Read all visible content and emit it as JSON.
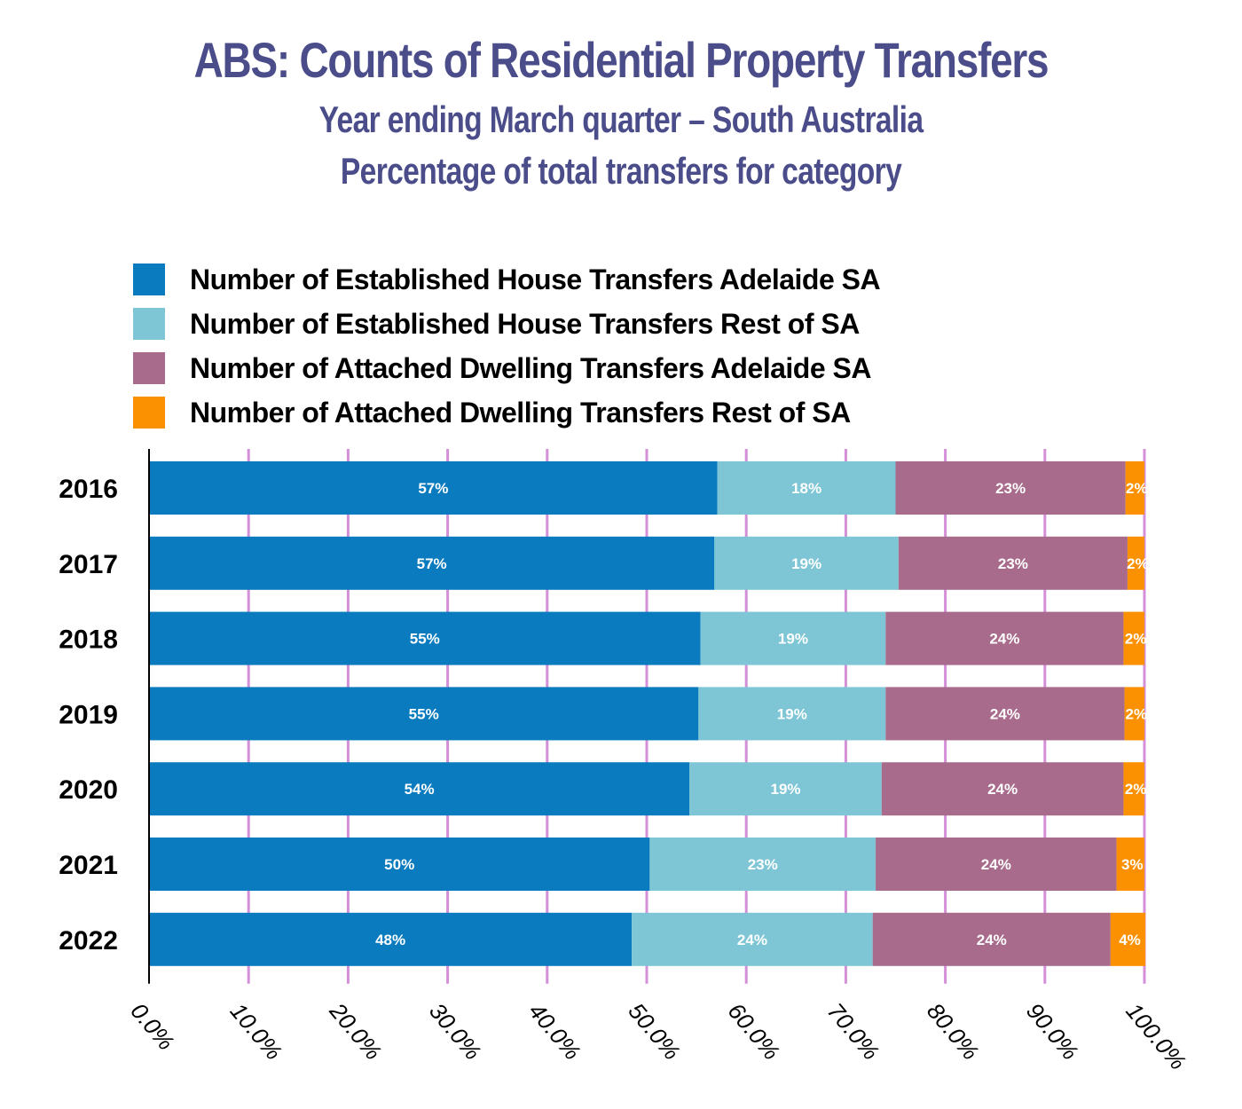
{
  "chart_data": {
    "type": "bar",
    "orientation": "horizontal",
    "stacked": "percent",
    "title": "ABS: Counts of Residential Property Transfers",
    "subtitle_lines": [
      "Year ending March quarter – South Australia",
      "Percentage of total transfers for category"
    ],
    "xlabel": "",
    "ylabel": "",
    "xlim": [
      0,
      100
    ],
    "x_ticks": [
      "0.0%",
      "10.0%",
      "20.0%",
      "30.0%",
      "40.0%",
      "50.0%",
      "60.0%",
      "70.0%",
      "80.0%",
      "90.0%",
      "100.0%"
    ],
    "grid": "vertical",
    "legend_position": "top",
    "categories": [
      "2016",
      "2017",
      "2018",
      "2019",
      "2020",
      "2021",
      "2022"
    ],
    "series": [
      {
        "name": "Number of Established House Transfers Adelaide SA",
        "color": "#0a7bbf",
        "values": [
          57.1,
          56.8,
          55.4,
          55.2,
          54.3,
          50.3,
          48.5
        ],
        "labels": [
          "57%",
          "57%",
          "55%",
          "55%",
          "54%",
          "50%",
          "48%"
        ]
      },
      {
        "name": "Number of Established House Transfers Rest of SA",
        "color": "#7ec6d6",
        "values": [
          17.9,
          18.5,
          18.6,
          18.8,
          19.3,
          22.7,
          24.2
        ],
        "labels": [
          "18%",
          "19%",
          "19%",
          "19%",
          "19%",
          "23%",
          "24%"
        ]
      },
      {
        "name": "Number of Attached Dwelling Transfers Adelaide SA",
        "color": "#a86b8b",
        "values": [
          23.1,
          23.0,
          23.9,
          24.0,
          24.3,
          24.2,
          23.9
        ],
        "labels": [
          "23%",
          "23%",
          "24%",
          "24%",
          "24%",
          "24%",
          "24%"
        ]
      },
      {
        "name": "Number of Attached Dwelling Transfers Rest of SA",
        "color": "#fb9100",
        "values": [
          1.9,
          1.7,
          2.1,
          2.0,
          2.1,
          2.8,
          3.5
        ],
        "labels": [
          "2%",
          "2%",
          "2%",
          "2%",
          "2%",
          "3%",
          "4%"
        ]
      }
    ],
    "colors": {
      "title": "#4b4c8a",
      "gridline": "#d48fd8",
      "axis": "#000000"
    }
  }
}
